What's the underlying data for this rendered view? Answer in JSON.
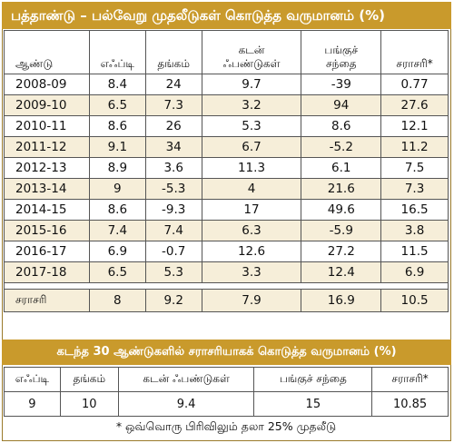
{
  "title": "பத்தாண்டு – பல்வேறு முதலீடுகள் கொடுத்த வருமானம் (%)",
  "table": {
    "headers": {
      "year": "ஆண்டு",
      "fd": "எஃப்டி",
      "gold": "தங்கம்",
      "debt": "கடன்\nஃபண்டுகள்",
      "equity": "பங்குச்\nசந்தை",
      "average": "சராசரி*"
    },
    "rows": [
      {
        "year": "2008-09",
        "fd": "8.4",
        "gold": "24",
        "debt": "9.7",
        "equity": "-39",
        "average": "0.77"
      },
      {
        "year": "2009-10",
        "fd": "6.5",
        "gold": "7.3",
        "debt": "3.2",
        "equity": "94",
        "average": "27.6"
      },
      {
        "year": "2010-11",
        "fd": "8.6",
        "gold": "26",
        "debt": "5.3",
        "equity": "8.6",
        "average": "12.1"
      },
      {
        "year": "2011-12",
        "fd": "9.1",
        "gold": "34",
        "debt": "6.7",
        "equity": "-5.2",
        "average": "11.2"
      },
      {
        "year": "2012-13",
        "fd": "8.9",
        "gold": "3.6",
        "debt": "11.3",
        "equity": "6.1",
        "average": "7.5"
      },
      {
        "year": "2013-14",
        "fd": "9",
        "gold": "-5.3",
        "debt": "4",
        "equity": "21.6",
        "average": "7.3"
      },
      {
        "year": "2014-15",
        "fd": "8.6",
        "gold": "-9.3",
        "debt": "17",
        "equity": "49.6",
        "average": "16.5"
      },
      {
        "year": "2015-16",
        "fd": "7.4",
        "gold": "7.4",
        "debt": "6.3",
        "equity": "-5.9",
        "average": "3.8"
      },
      {
        "year": "2016-17",
        "fd": "6.9",
        "gold": "-0.7",
        "debt": "12.6",
        "equity": "27.2",
        "average": "11.5"
      },
      {
        "year": "2017-18",
        "fd": "6.5",
        "gold": "5.3",
        "debt": "3.3",
        "equity": "12.4",
        "average": "6.9"
      }
    ],
    "average_row": {
      "year": "சராசரி",
      "fd": "8",
      "gold": "9.2",
      "debt": "7.9",
      "equity": "16.9",
      "average": "10.5"
    }
  },
  "long_term": {
    "title": "கடந்த 30 ஆண்டுகளில் சராசரியாகக் கொடுத்த வருமானம் (%)",
    "headers": {
      "fd": "எஃப்டி",
      "gold": "தங்கம்",
      "debt": "கடன் ஃபண்டுகள்",
      "equity": "பங்குச் சந்தை",
      "average": "சராசரி*"
    },
    "values": {
      "fd": "9",
      "gold": "10",
      "debt": "9.4",
      "equity": "15",
      "average": "10.85"
    }
  },
  "footnote": "* ஒவ்வொரு பிரிவிலும் தலா 25% முதலீடு",
  "colors": {
    "header_gold": "#c99a2c",
    "row_shade": "#f6eed9",
    "border": "#555555"
  }
}
